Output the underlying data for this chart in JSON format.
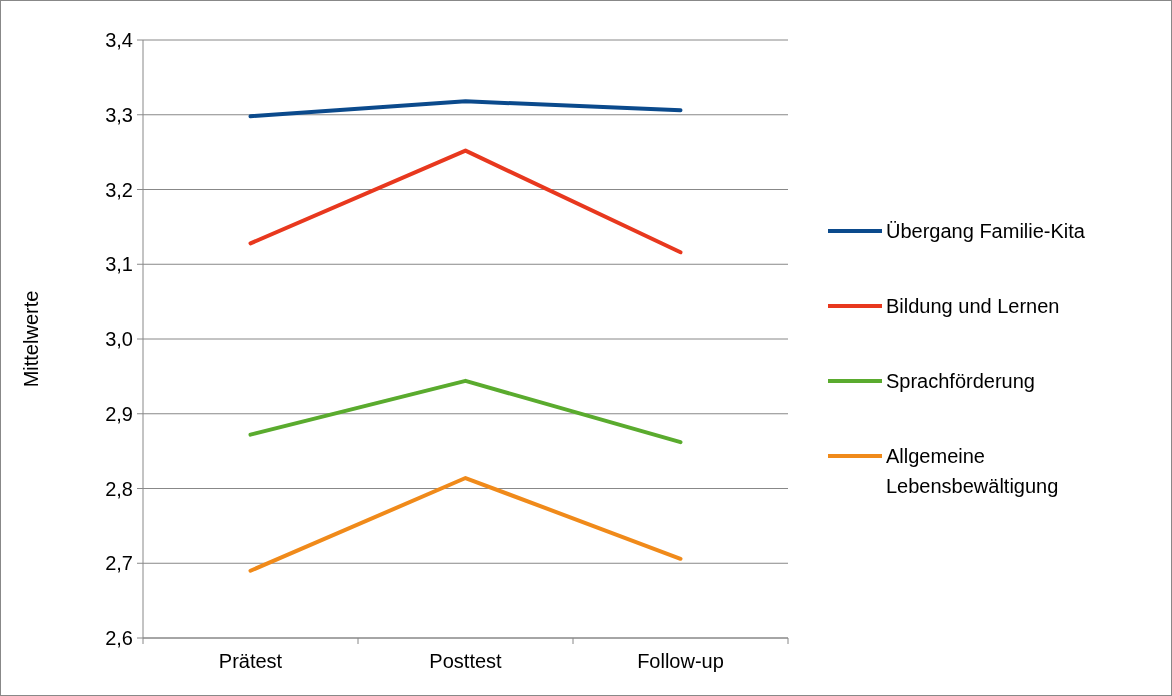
{
  "chart_data": {
    "type": "line",
    "ylabel": "Mittelwerte",
    "categories": [
      "Prätest",
      "Posttest",
      "Follow-up"
    ],
    "series": [
      {
        "name": "Übergang Familie-Kita",
        "color": "#0b4a8c",
        "values": [
          3.298,
          3.318,
          3.306
        ]
      },
      {
        "name": "Bildung und Lernen",
        "color": "#e8381e",
        "values": [
          3.128,
          3.252,
          3.116
        ]
      },
      {
        "name": "Sprachförderung",
        "color": "#5aab2e",
        "values": [
          2.872,
          2.944,
          2.862
        ]
      },
      {
        "name": "Allgemeine Lebensbewältigung",
        "color": "#f08a1a",
        "values": [
          2.69,
          2.814,
          2.706
        ]
      }
    ],
    "ylim": [
      2.6,
      3.4
    ],
    "yticks": [
      {
        "value": 2.6,
        "label": "2,6"
      },
      {
        "value": 2.7,
        "label": "2,7"
      },
      {
        "value": 2.8,
        "label": "2,8"
      },
      {
        "value": 2.9,
        "label": "2,9"
      },
      {
        "value": 3.0,
        "label": "3,0"
      },
      {
        "value": 3.1,
        "label": "3,1"
      },
      {
        "value": 3.2,
        "label": "3,2"
      },
      {
        "value": 3.3,
        "label": "3,3"
      },
      {
        "value": 3.4,
        "label": "3,4"
      }
    ],
    "grid": "y",
    "legend": "right",
    "marker": "none",
    "line_style": "solid"
  }
}
